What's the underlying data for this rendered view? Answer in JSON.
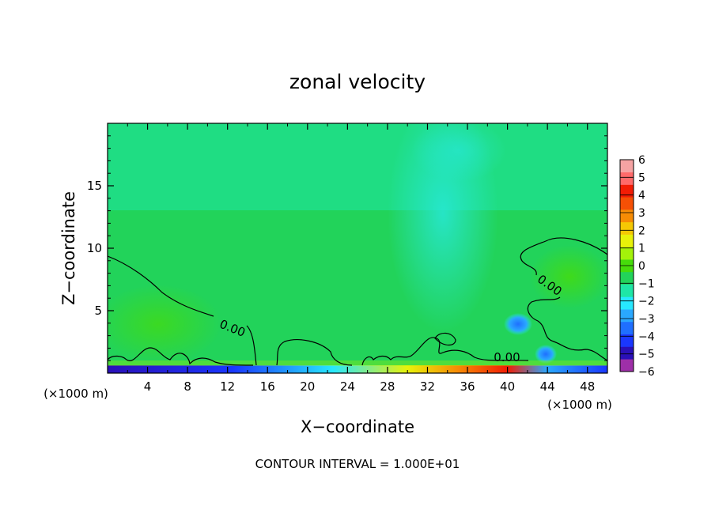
{
  "chart_data": {
    "type": "heatmap",
    "title": "zonal velocity",
    "xlabel": "X−coordinate",
    "ylabel": "Z−coordinate",
    "x_unit_left": "(×1000 m)",
    "x_unit_right": "(×1000 m)",
    "footer": "CONTOUR INTERVAL = 1.000E+01",
    "xlim": [
      0,
      50
    ],
    "ylim": [
      0,
      20
    ],
    "x_ticks": [
      "4",
      "8",
      "12",
      "16",
      "20",
      "24",
      "28",
      "32",
      "36",
      "40",
      "44",
      "48"
    ],
    "y_ticks": [
      "5",
      "10",
      "15"
    ],
    "contour_labels": [
      "0.00",
      "0.00",
      "0.00"
    ],
    "colorbar": {
      "range": [
        -6,
        6
      ],
      "labels": [
        "6",
        "5",
        "4",
        "3",
        "2",
        "1",
        "0",
        "−1",
        "−2",
        "−3",
        "−4",
        "−5",
        "−6"
      ],
      "colors": [
        "#9e2fa8",
        "#2a10b8",
        "#1a37ff",
        "#1f6fff",
        "#2aa8ff",
        "#27e8ff",
        "#1ee6a6",
        "#22d35a",
        "#46dc0b",
        "#a4f20a",
        "#e8f20a",
        "#f5c804",
        "#f78c05",
        "#f55005",
        "#f21d05",
        "#ff6a6a",
        "#f5a3a3"
      ]
    },
    "field_regions": [
      {
        "x": [
          24,
          40
        ],
        "z": [
          8,
          14
        ],
        "u": -2
      },
      {
        "x": [
          0,
          50
        ],
        "z": [
          0,
          0.5
        ],
        "u": -4
      },
      {
        "x": [
          30,
          42
        ],
        "z": [
          0,
          0.5
        ],
        "u": 3
      },
      {
        "x": [
          36,
          40
        ],
        "z": [
          3.5,
          4.5
        ],
        "u": -3
      }
    ]
  }
}
